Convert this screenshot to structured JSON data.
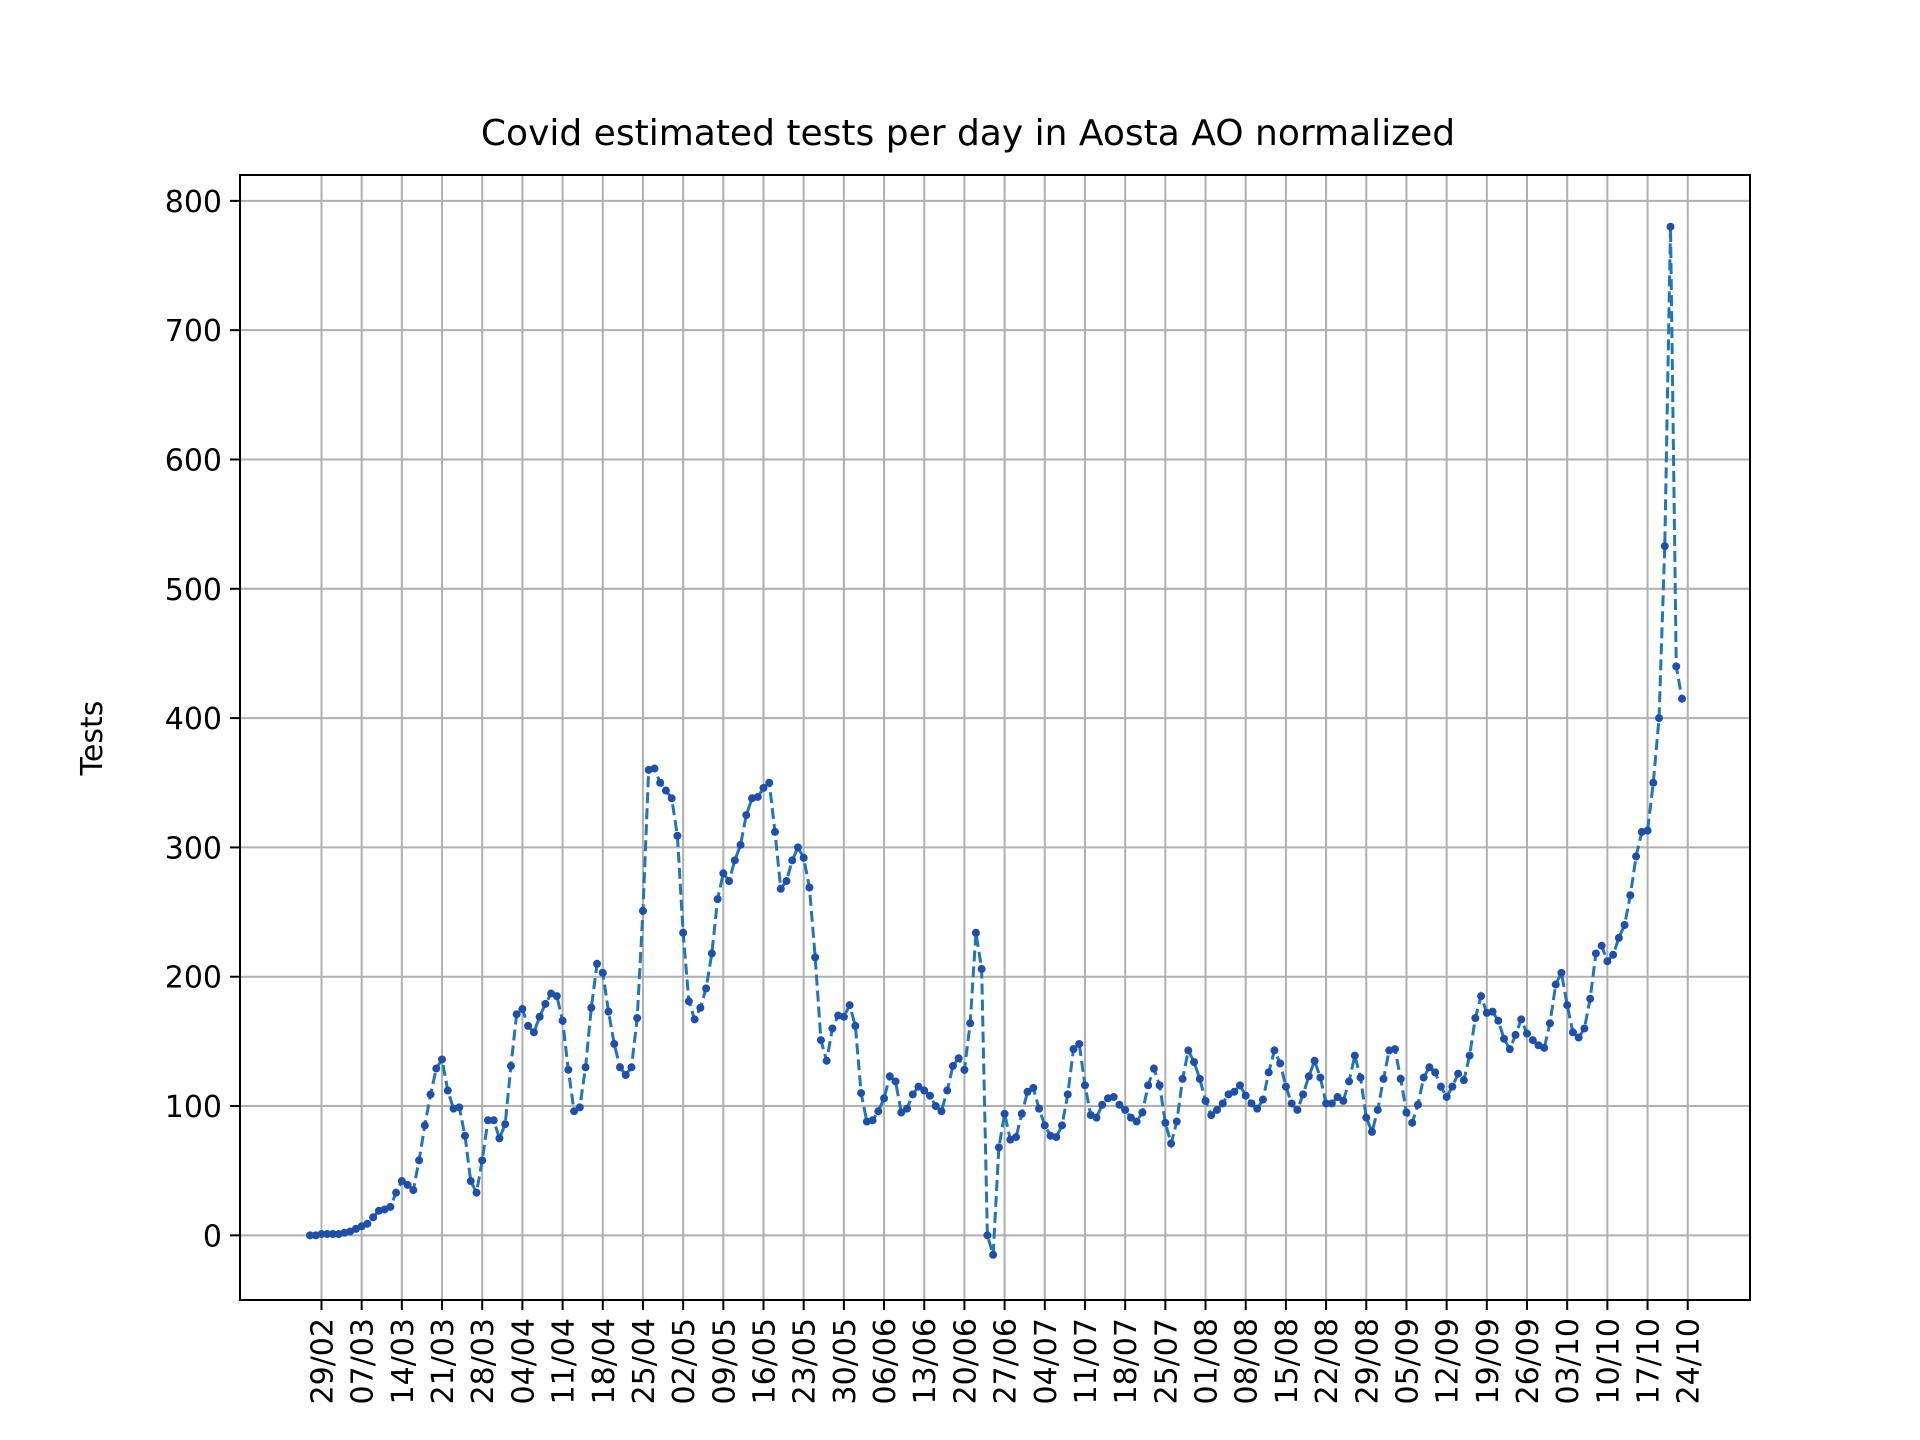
{
  "chart_data": {
    "type": "line",
    "title": "Covid estimated tests per day in Aosta AO normalized",
    "xlabel": "",
    "ylabel": "Tests",
    "ylim": [
      -50,
      820
    ],
    "yticks": [
      0,
      100,
      200,
      300,
      400,
      500,
      600,
      700,
      800
    ],
    "grid": true,
    "line_style": "dashed",
    "marker": "dot",
    "colors": {
      "line": "#1f77b4",
      "marker": "#1f4fa8",
      "grid": "#b0b0b0"
    },
    "x_tick_labels": [
      "29/02",
      "07/03",
      "14/03",
      "21/03",
      "28/03",
      "04/04",
      "11/04",
      "18/04",
      "25/04",
      "02/05",
      "09/05",
      "16/05",
      "23/05",
      "30/05",
      "06/06",
      "13/06",
      "20/06",
      "27/06",
      "04/07",
      "11/07",
      "18/07",
      "25/07",
      "01/08",
      "08/08",
      "15/08",
      "22/08",
      "29/08",
      "05/09",
      "12/09",
      "19/09",
      "26/09",
      "03/10",
      "10/10",
      "17/10",
      "24/10"
    ],
    "x_start": "27/02",
    "series": [
      {
        "values": [
          0,
          0,
          1,
          1,
          1,
          1,
          2,
          3,
          5,
          7,
          9,
          14,
          19,
          20,
          22,
          33,
          42,
          39,
          35,
          58,
          85,
          109,
          129,
          136,
          112,
          98,
          99,
          77,
          42,
          33,
          58,
          89,
          89,
          75,
          86,
          131,
          171,
          175,
          162,
          157,
          169,
          179,
          187,
          185,
          166,
          128,
          96,
          99,
          130,
          176,
          210,
          203,
          173,
          148,
          130,
          124,
          130,
          168,
          251,
          360,
          361,
          350,
          344,
          338,
          309,
          234,
          181,
          167,
          176,
          191,
          218,
          260,
          280,
          274,
          290,
          302,
          325,
          338,
          339,
          346,
          350,
          312,
          268,
          274,
          290,
          300,
          292,
          269,
          215,
          151,
          135,
          160,
          170,
          169,
          178,
          162,
          110,
          88,
          89,
          96,
          106,
          123,
          119,
          95,
          98,
          109,
          115,
          112,
          108,
          100,
          96,
          112,
          131,
          137,
          128,
          164,
          234,
          206,
          0,
          -15,
          68,
          94,
          74,
          76,
          94,
          111,
          114,
          98,
          85,
          77,
          76,
          85,
          109,
          144,
          148,
          116,
          93,
          91,
          101,
          106,
          107,
          101,
          97,
          91,
          88,
          95,
          116,
          129,
          116,
          87,
          71,
          88,
          121,
          143,
          134,
          121,
          104,
          93,
          97,
          102,
          109,
          111,
          116,
          108,
          102,
          98,
          105,
          126,
          143,
          133,
          115,
          102,
          97,
          109,
          123,
          135,
          122,
          102,
          102,
          107,
          104,
          119,
          139,
          122,
          91,
          80,
          97,
          121,
          143,
          144,
          121,
          95,
          87,
          101,
          122,
          130,
          126,
          115,
          107,
          115,
          125,
          120,
          139,
          168,
          185,
          172,
          173,
          166,
          152,
          144,
          155,
          167,
          156,
          151,
          147,
          145,
          164,
          194,
          203,
          178,
          157,
          153,
          160,
          183,
          218,
          224,
          212,
          217,
          230,
          240,
          263,
          293,
          312,
          313,
          350,
          400,
          533,
          780,
          440,
          415
        ]
      }
    ]
  }
}
